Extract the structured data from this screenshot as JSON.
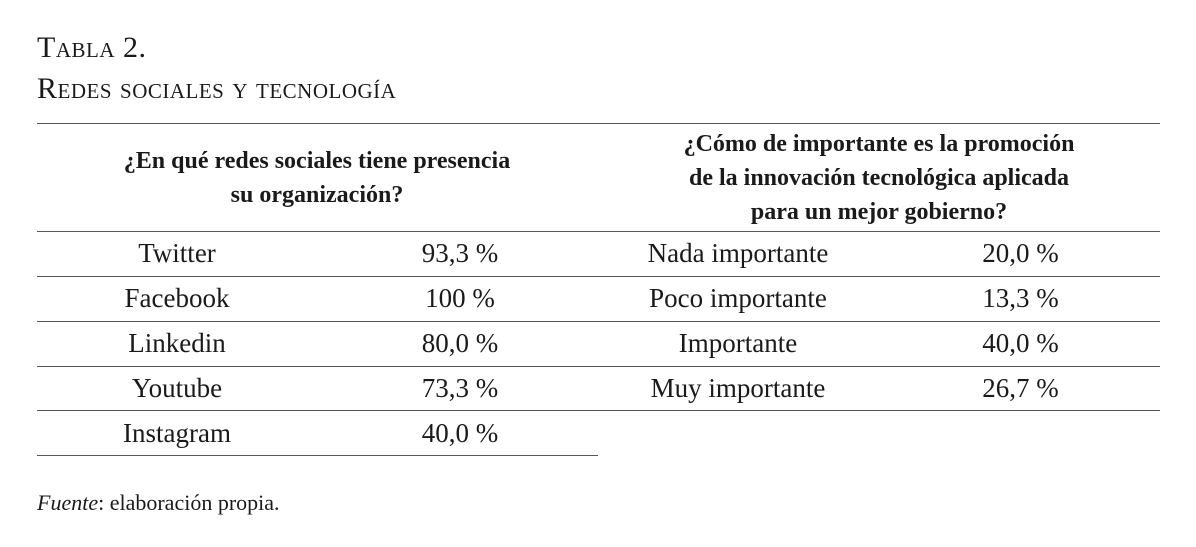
{
  "caption": {
    "line1": "Tabla 2.",
    "line2": "Redes sociales y tecnología"
  },
  "left_table": {
    "header_lines": [
      "¿En qué redes sociales tiene presencia",
      "su organización?"
    ],
    "rows": [
      {
        "label": "Twitter",
        "value": "93,3 %"
      },
      {
        "label": "Facebook",
        "value": "100 %"
      },
      {
        "label": "Linkedin",
        "value": "80,0 %"
      },
      {
        "label": "Youtube",
        "value": "73,3 %"
      },
      {
        "label": "Instagram",
        "value": "40,0 %"
      }
    ]
  },
  "right_table": {
    "header_lines": [
      "¿Cómo de importante es la promoción",
      "de la innovación tecnológica aplicada",
      "para un mejor gobierno?"
    ],
    "rows": [
      {
        "label": "Nada importante",
        "value": "20,0 %"
      },
      {
        "label": "Poco importante",
        "value": "13,3 %"
      },
      {
        "label": "Importante",
        "value": "40,0 %"
      },
      {
        "label": "Muy importante",
        "value": "26,7 %"
      }
    ]
  },
  "source": {
    "label": "Fuente",
    "text": ": elaboración propia."
  }
}
